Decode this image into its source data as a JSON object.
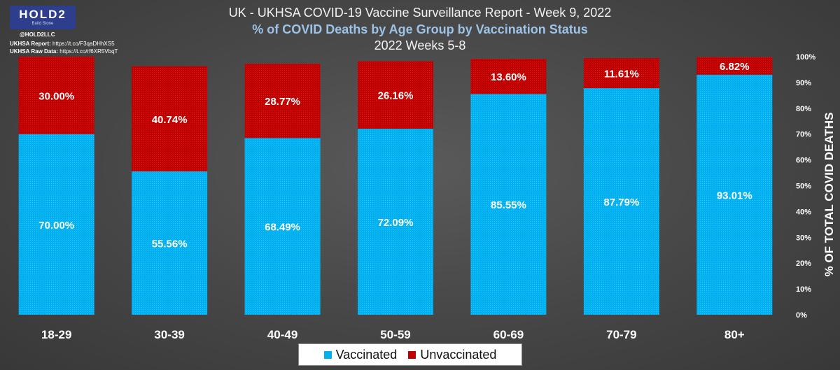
{
  "header": {
    "title": "UK - UKHSA COVID-19 Vaccine Surveillance Report - Week 9, 2022",
    "subtitle": "% of COVID Deaths by Age Group by Vaccination Status",
    "period": "2022 Weeks 5-8"
  },
  "branding": {
    "logo_text": "HOLD2",
    "logo_tagline": "Build Stone",
    "handle": "@HOLD2LLC",
    "report_label": "UKHSA Report:",
    "report_link": "https://t.co/F3qaDHhXS5",
    "raw_label": "UKHSA Raw Data:",
    "raw_link": "https://t.co/rf6XR5VbqT"
  },
  "legend": {
    "vaccinated": "Vaccinated",
    "unvaccinated": "Unvaccinated"
  },
  "colors": {
    "vaccinated": "#00b0f0",
    "unvaccinated": "#c00000",
    "background": "#444444"
  },
  "chart_data": {
    "type": "bar",
    "stacked": true,
    "categories": [
      "18-29",
      "30-39",
      "40-49",
      "50-59",
      "60-69",
      "70-79",
      "80+"
    ],
    "series": [
      {
        "name": "Vaccinated",
        "values": [
          70.0,
          55.56,
          68.49,
          72.09,
          85.55,
          87.79,
          93.01
        ]
      },
      {
        "name": "Unvaccinated",
        "values": [
          30.0,
          40.74,
          28.77,
          26.16,
          13.6,
          11.61,
          6.82
        ]
      }
    ],
    "data_labels": {
      "Vaccinated": [
        "70.00%",
        "55.56%",
        "68.49%",
        "72.09%",
        "85.55%",
        "87.79%",
        "93.01%"
      ],
      "Unvaccinated": [
        "30.00%",
        "40.74%",
        "28.77%",
        "26.16%",
        "13.60%",
        "11.61%",
        "6.82%"
      ]
    },
    "ylabel": "% OF TOTAL COVID DEATHS",
    "y_axis_position": "right",
    "ylim": [
      0,
      100
    ],
    "yticks": [
      "0%",
      "10%",
      "20%",
      "30%",
      "40%",
      "50%",
      "60%",
      "70%",
      "80%",
      "90%",
      "100%"
    ],
    "grid": false,
    "legend_position": "bottom"
  }
}
